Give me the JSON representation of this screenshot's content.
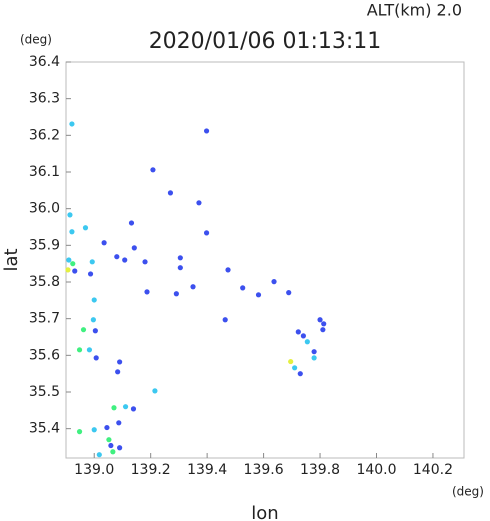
{
  "chart_data": {
    "type": "scatter",
    "title": "2020/01/06 01:13:11",
    "subtitle": "ALT(km) 2.0",
    "x_label": "lon",
    "y_label": "lat",
    "x_unit": "(deg)",
    "y_unit": "(deg)",
    "xlim": [
      138.9,
      140.31
    ],
    "ylim": [
      35.32,
      36.4
    ],
    "xticks": [
      {
        "value": 139,
        "label": "139.0"
      },
      139.2,
      139.4,
      139.6,
      139.8,
      {
        "value": 140,
        "label": "140.0"
      },
      140.2
    ],
    "yticks": [
      35.4,
      35.5,
      35.6,
      35.7,
      35.8,
      35.9,
      {
        "value": 36,
        "label": "36.0"
      },
      36.1,
      36.2,
      36.3,
      36.4
    ],
    "series": [
      {
        "color": "#3c50ee",
        "x": [
          139.208,
          139.27,
          139.371,
          139.398,
          139.132,
          139.035,
          139.18,
          139.305,
          139.474,
          139.526,
          139.582,
          139.637,
          139.35,
          139.187,
          139.464,
          139.291,
          139.689,
          139.8,
          139.81,
          139.741,
          139.779,
          139.813,
          139.004,
          139.007,
          139.09,
          139.083,
          139.139,
          139.087,
          139.09,
          139.045,
          139.059,
          138.931,
          138.987,
          139.08,
          139.108,
          139.305,
          139.398,
          139.142,
          139.723,
          139.73
        ],
        "values": [
          36.106,
          36.043,
          36.016,
          36.212,
          35.961,
          35.907,
          35.855,
          35.839,
          35.833,
          35.784,
          35.765,
          35.801,
          35.787,
          35.773,
          35.697,
          35.768,
          35.771,
          35.697,
          35.67,
          35.653,
          35.61,
          35.686,
          35.667,
          35.593,
          35.582,
          35.555,
          35.454,
          35.416,
          35.348,
          35.403,
          35.354,
          35.83,
          35.822,
          35.869,
          35.86,
          35.866,
          35.934,
          35.893,
          35.664,
          35.55
        ]
      },
      {
        "color": "#3cc8f0",
        "x": [
          138.914,
          138.969,
          138.921,
          139.0,
          138.997,
          138.983,
          139.0,
          139.018,
          139.215,
          139.111,
          138.921,
          139.755,
          139.779,
          139.71,
          138.993,
          138.91
        ],
        "values": [
          35.983,
          35.948,
          35.937,
          35.751,
          35.697,
          35.615,
          35.397,
          35.329,
          35.503,
          35.46,
          36.231,
          35.637,
          35.593,
          35.566,
          35.855,
          35.86
        ]
      },
      {
        "color": "#40f080",
        "x": [
          138.924,
          138.962,
          138.948,
          139.07,
          138.948,
          139.066,
          139.052
        ],
        "values": [
          35.85,
          35.67,
          35.615,
          35.457,
          35.392,
          35.337,
          35.37
        ]
      },
      {
        "color": "#e4f040",
        "x": [
          138.907,
          139.696
        ],
        "values": [
          35.833,
          35.583
        ]
      }
    ]
  }
}
